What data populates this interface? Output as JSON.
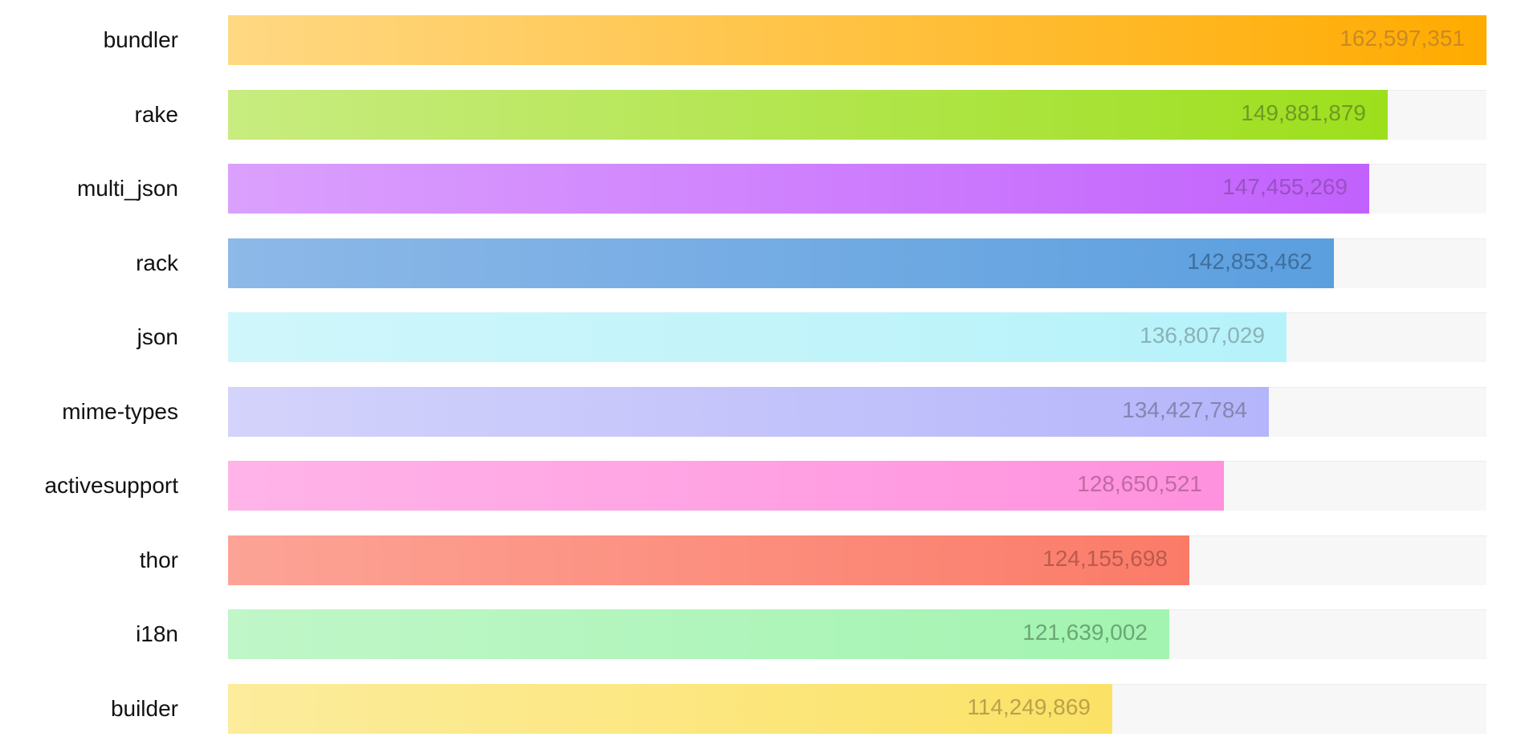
{
  "chart_data": {
    "type": "bar",
    "orientation": "horizontal",
    "categories": [
      "bundler",
      "rake",
      "multi_json",
      "rack",
      "json",
      "mime-types",
      "activesupport",
      "thor",
      "i18n",
      "builder"
    ],
    "values": [
      162597351,
      149881879,
      147455269,
      142853462,
      136807029,
      134427784,
      128650521,
      124155698,
      121639002,
      114249869
    ],
    "value_labels": [
      "162,597,351",
      "149,881,879",
      "147,455,269",
      "142,853,462",
      "136,807,029",
      "134,427,784",
      "128,650,521",
      "124,155,698",
      "121,639,002",
      "114,249,869"
    ],
    "xlim": [
      0,
      162597351
    ],
    "grid": false,
    "legend": "none",
    "colors": [
      {
        "light": "#ffd883",
        "dark": "#ffab00",
        "text": "#c98a22"
      },
      {
        "light": "#c8ec80",
        "dark": "#9ddf1c",
        "text": "#6f9a25"
      },
      {
        "light": "#dba0fd",
        "dark": "#c261fd",
        "text": "#9a50c2"
      },
      {
        "light": "#8db8e8",
        "dark": "#5b9fdf",
        "text": "#3e6f9e"
      },
      {
        "light": "#cff6fb",
        "dark": "#b6f2fa",
        "text": "#8ab2b8"
      },
      {
        "light": "#d3d3fb",
        "dark": "#b5b5fb",
        "text": "#8585b0"
      },
      {
        "light": "#ffb4e8",
        "dark": "#ff91de",
        "text": "#c06aa3"
      },
      {
        "light": "#fca396",
        "dark": "#fb7b68",
        "text": "#bb5a4d"
      },
      {
        "light": "#c0f6c8",
        "dark": "#a2f4b0",
        "text": "#6aa776"
      },
      {
        "light": "#fcec9c",
        "dark": "#fbe266",
        "text": "#baa24a"
      }
    ]
  }
}
